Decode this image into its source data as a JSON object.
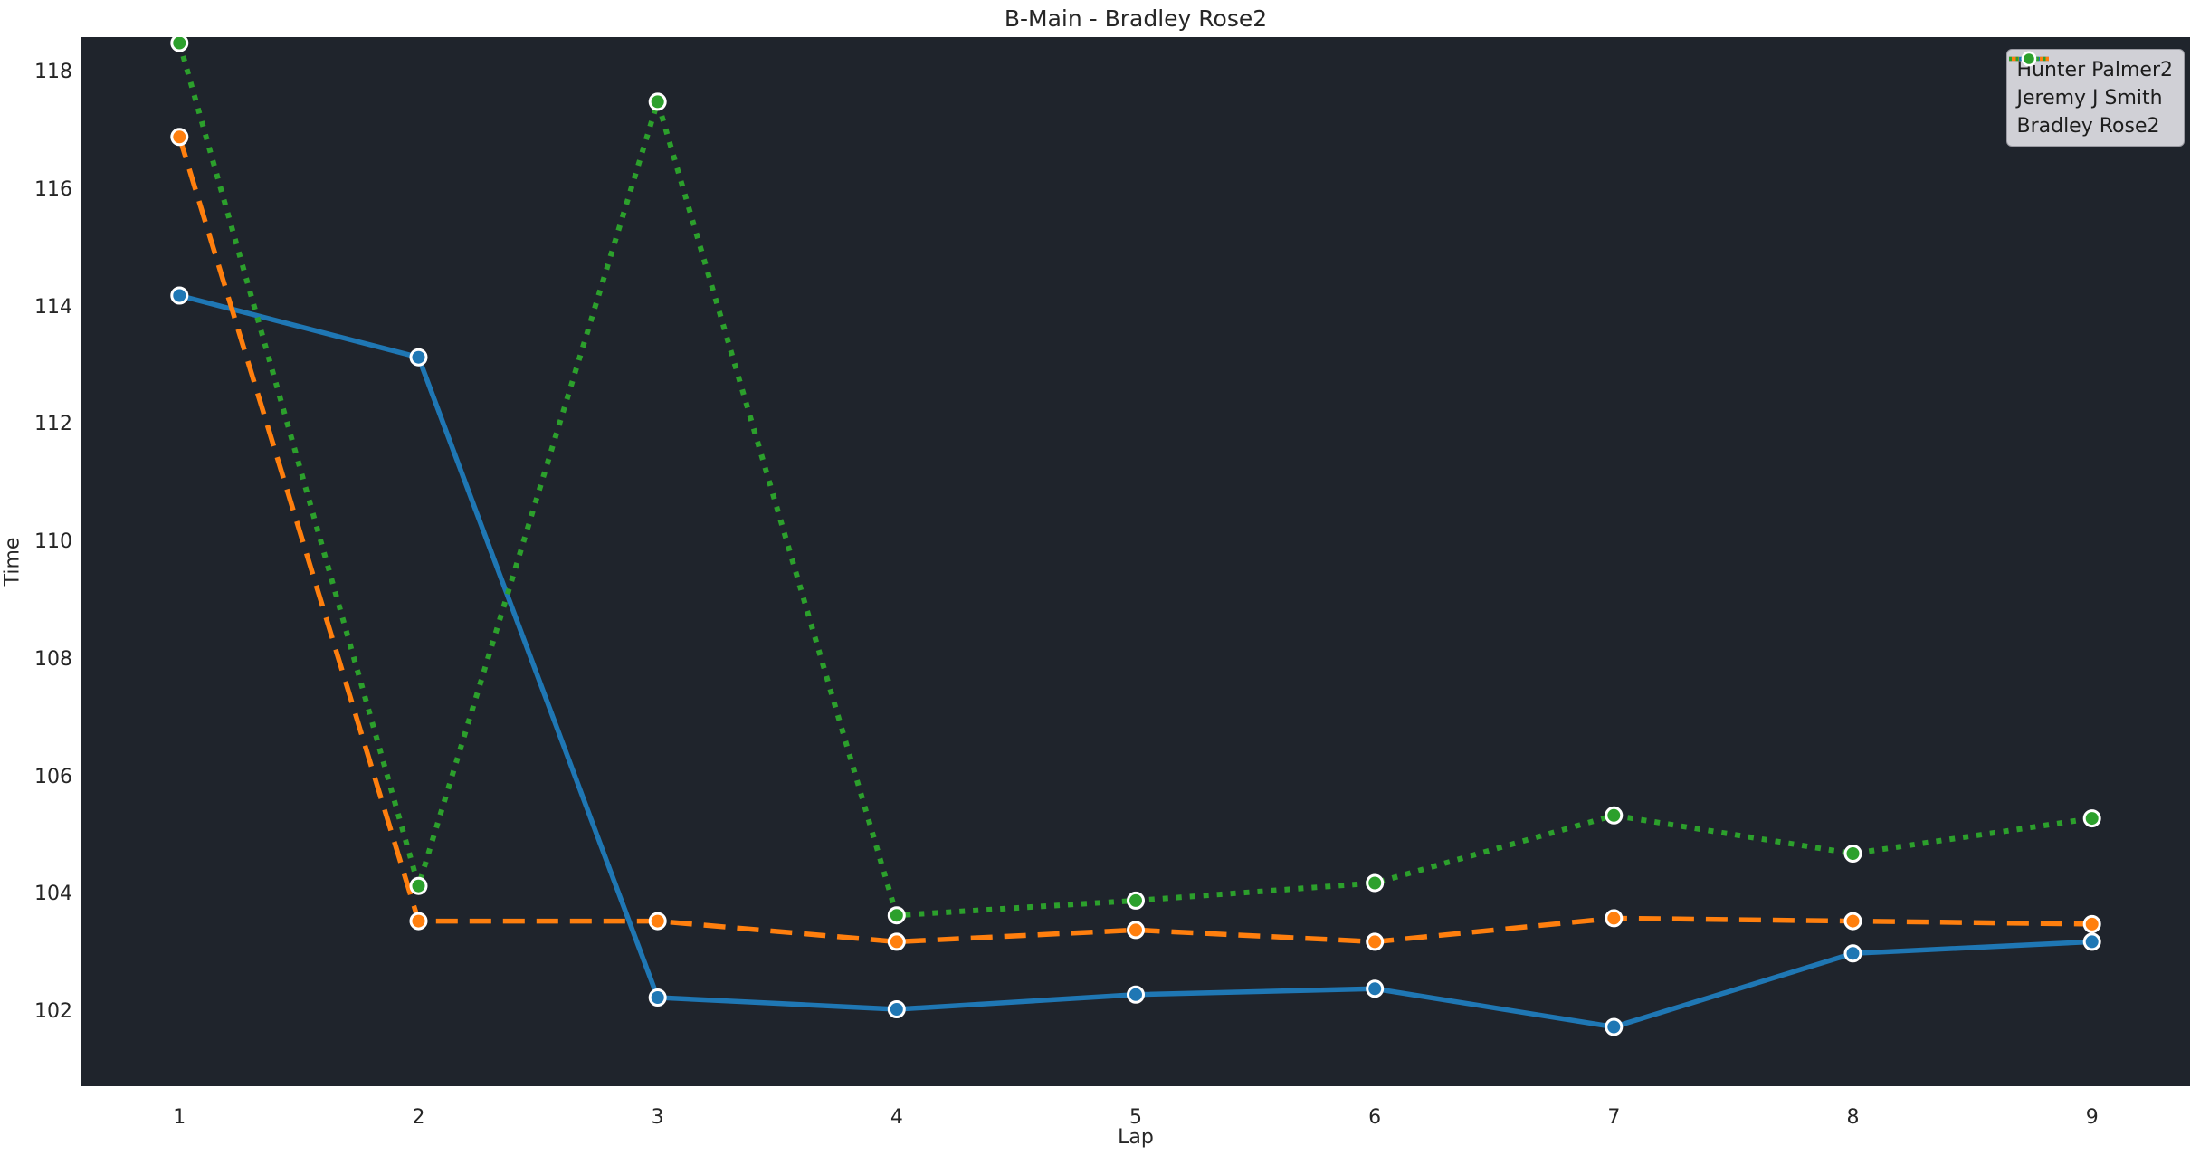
{
  "page": {
    "title": "B-Main - Bradley Rose2"
  },
  "chart_data": {
    "type": "line",
    "title": "B-Main - Bradley Rose2",
    "xlabel": "Lap",
    "ylabel": "Time",
    "x": [
      1,
      2,
      3,
      4,
      5,
      6,
      7,
      8,
      9
    ],
    "xticks": [
      1,
      2,
      3,
      4,
      5,
      6,
      7,
      8,
      9
    ],
    "yticks": [
      102,
      104,
      106,
      108,
      110,
      112,
      114,
      116,
      118
    ],
    "xlim": [
      0.59,
      9.41
    ],
    "ylim": [
      100.74,
      118.6
    ],
    "grid": false,
    "legend_position": "upper right",
    "series": [
      {
        "name": "Hunter Palmer2",
        "color": "#1f77b4",
        "line_style": "solid",
        "marker": "circle",
        "values": [
          114.2,
          113.15,
          102.25,
          102.05,
          102.3,
          102.4,
          101.75,
          103.0,
          103.2
        ]
      },
      {
        "name": "Jeremy J Smith",
        "color": "#ff7f0e",
        "line_style": "dashed",
        "marker": "circle",
        "values": [
          116.9,
          103.55,
          103.55,
          103.2,
          103.4,
          103.2,
          103.6,
          103.55,
          103.5
        ]
      },
      {
        "name": "Bradley Rose2",
        "color": "#2ca02c",
        "line_style": "dotted",
        "marker": "circle",
        "values": [
          118.5,
          104.15,
          117.5,
          103.65,
          103.9,
          104.2,
          105.35,
          104.7,
          105.3
        ]
      }
    ],
    "colors": {
      "figure_bg": "#ffffff",
      "plot_bg": "#1f242c",
      "text": "#262626",
      "legend_bg": "#d0d0d6",
      "legend_border": "#9a9aa2",
      "marker_edge": "#ffffff"
    }
  }
}
